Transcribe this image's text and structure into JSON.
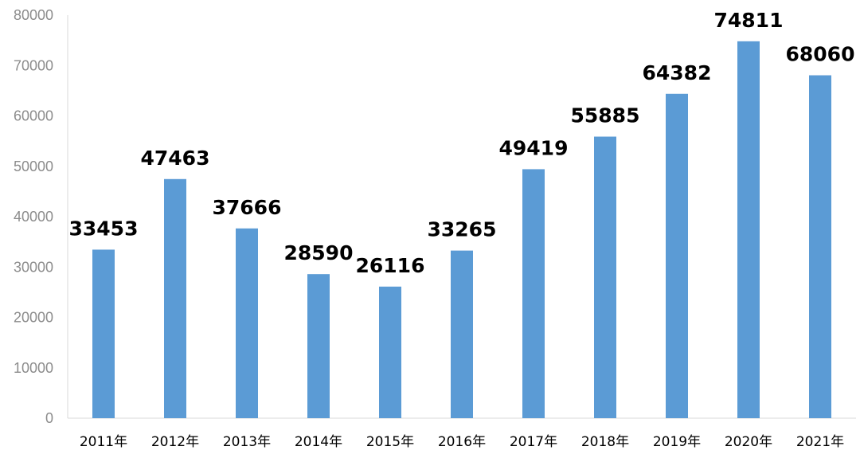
{
  "chart_data": {
    "type": "bar",
    "title": "",
    "xlabel": "",
    "ylabel": "",
    "categories": [
      "2011年",
      "2012年",
      "2013年",
      "2014年",
      "2015年",
      "2016年",
      "2017年",
      "2018年",
      "2019年",
      "2020年",
      "2021年"
    ],
    "values": [
      33453,
      47463,
      37666,
      28590,
      26116,
      33265,
      49419,
      55885,
      64382,
      74811,
      68060
    ],
    "y_ticks": [
      "0",
      "10000",
      "20000",
      "30000",
      "40000",
      "50000",
      "60000",
      "70000",
      "80000"
    ],
    "ylim": [
      0,
      80000
    ],
    "grid": false,
    "legend": "none",
    "colors": {
      "bar": "#5b9bd5",
      "axis": "#d9d9d9",
      "tick_text": "#8c8c8c",
      "label_text": "#000000"
    }
  }
}
